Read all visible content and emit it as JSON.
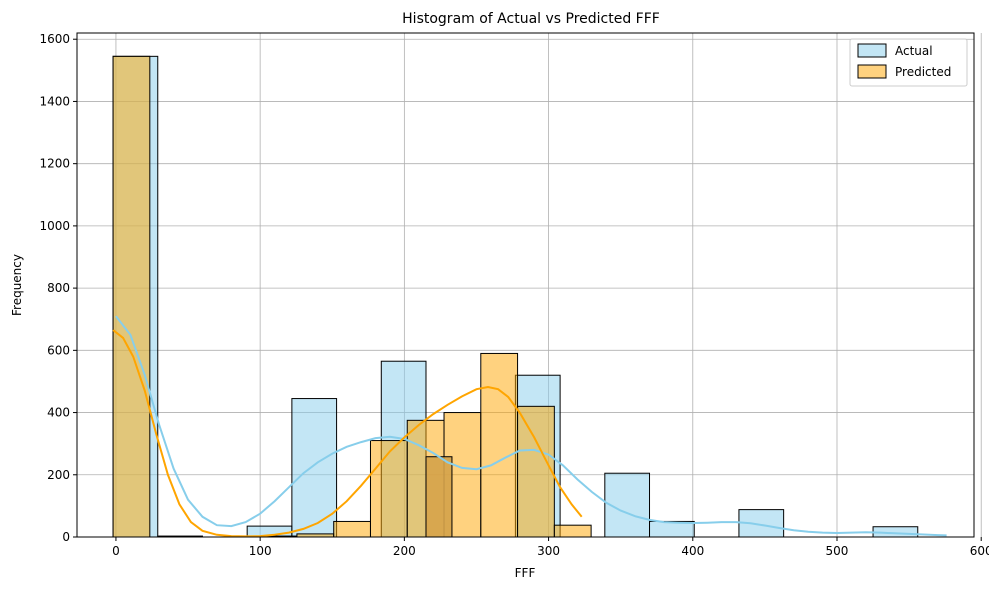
{
  "chart_data": {
    "type": "histogram",
    "title": "Histogram of Actual vs Predicted FFF",
    "xlabel": "FFF",
    "ylabel": "Frequency",
    "xlim": [
      -27,
      595
    ],
    "ylim": [
      0,
      1620
    ],
    "xticks": [
      0,
      100,
      200,
      300,
      400,
      500,
      600
    ],
    "yticks": [
      0,
      200,
      400,
      600,
      800,
      1000,
      1200,
      1400,
      1600
    ],
    "grid": true,
    "legend_position": "top-right",
    "series": [
      {
        "name": "Actual",
        "color": "#87ceeb",
        "kde_color": "#87ceeb",
        "bin_edges": [
          -2,
          29,
          60,
          91,
          122,
          153,
          184,
          215,
          246,
          277,
          308,
          339,
          370,
          401,
          432,
          463,
          494,
          525,
          556,
          587
        ],
        "counts": [
          1545,
          3,
          0,
          35,
          445,
          0,
          565,
          0,
          0,
          520,
          0,
          205,
          50,
          0,
          88,
          0,
          0,
          33,
          0
        ],
        "kde": [
          [
            0,
            710
          ],
          [
            10,
            650
          ],
          [
            20,
            520
          ],
          [
            30,
            360
          ],
          [
            40,
            220
          ],
          [
            50,
            120
          ],
          [
            60,
            65
          ],
          [
            70,
            38
          ],
          [
            80,
            35
          ],
          [
            90,
            48
          ],
          [
            100,
            75
          ],
          [
            110,
            115
          ],
          [
            120,
            160
          ],
          [
            130,
            205
          ],
          [
            140,
            240
          ],
          [
            150,
            268
          ],
          [
            160,
            290
          ],
          [
            170,
            305
          ],
          [
            180,
            318
          ],
          [
            190,
            322
          ],
          [
            200,
            315
          ],
          [
            210,
            295
          ],
          [
            220,
            270
          ],
          [
            230,
            240
          ],
          [
            240,
            222
          ],
          [
            250,
            218
          ],
          [
            260,
            230
          ],
          [
            270,
            255
          ],
          [
            280,
            278
          ],
          [
            290,
            280
          ],
          [
            300,
            265
          ],
          [
            310,
            230
          ],
          [
            320,
            185
          ],
          [
            330,
            145
          ],
          [
            340,
            110
          ],
          [
            350,
            85
          ],
          [
            360,
            67
          ],
          [
            370,
            55
          ],
          [
            380,
            48
          ],
          [
            390,
            46
          ],
          [
            400,
            45
          ],
          [
            410,
            46
          ],
          [
            420,
            48
          ],
          [
            430,
            48
          ],
          [
            440,
            44
          ],
          [
            450,
            37
          ],
          [
            460,
            29
          ],
          [
            470,
            22
          ],
          [
            480,
            17
          ],
          [
            490,
            14
          ],
          [
            500,
            13
          ],
          [
            510,
            14
          ],
          [
            520,
            15
          ],
          [
            530,
            14
          ],
          [
            540,
            12
          ],
          [
            550,
            10
          ],
          [
            560,
            8
          ],
          [
            570,
            6
          ],
          [
            576,
            5
          ]
        ]
      },
      {
        "name": "Predicted",
        "color": "#ffa500",
        "kde_color": "#ffa500",
        "bin_edges": [
          -2,
          23.5,
          49,
          74.5,
          100,
          125.5,
          151,
          176.5,
          202,
          227.5,
          253,
          278.5,
          304,
          329.5
        ],
        "counts": [
          1545,
          0,
          0,
          0,
          3,
          10,
          50,
          310,
          375,
          400,
          590,
          420,
          38
        ],
        "extra_bars": [
          {
            "x0": 215,
            "x1": 233,
            "value": 258
          }
        ],
        "kde": [
          [
            -2,
            665
          ],
          [
            5,
            640
          ],
          [
            12,
            580
          ],
          [
            20,
            470
          ],
          [
            28,
            330
          ],
          [
            36,
            200
          ],
          [
            44,
            105
          ],
          [
            52,
            48
          ],
          [
            60,
            20
          ],
          [
            70,
            7
          ],
          [
            80,
            3
          ],
          [
            90,
            2
          ],
          [
            100,
            3
          ],
          [
            110,
            7
          ],
          [
            120,
            14
          ],
          [
            130,
            26
          ],
          [
            140,
            45
          ],
          [
            150,
            75
          ],
          [
            160,
            115
          ],
          [
            170,
            165
          ],
          [
            180,
            220
          ],
          [
            190,
            275
          ],
          [
            200,
            320
          ],
          [
            210,
            360
          ],
          [
            220,
            395
          ],
          [
            230,
            425
          ],
          [
            240,
            452
          ],
          [
            250,
            475
          ],
          [
            258,
            482
          ],
          [
            265,
            475
          ],
          [
            272,
            450
          ],
          [
            280,
            400
          ],
          [
            290,
            320
          ],
          [
            300,
            230
          ],
          [
            308,
            160
          ],
          [
            316,
            105
          ],
          [
            323,
            65
          ]
        ]
      }
    ]
  }
}
